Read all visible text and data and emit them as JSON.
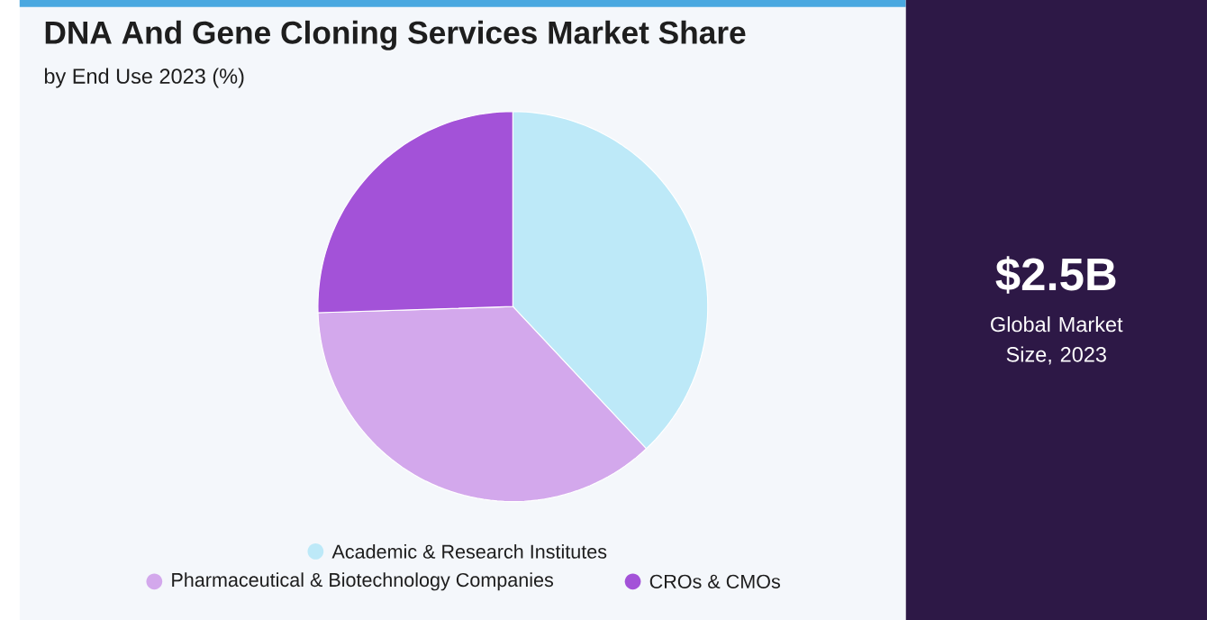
{
  "chart_data": {
    "type": "pie",
    "title": "DNA And Gene Cloning Services Market Share",
    "subtitle": "by End Use 2023 (%)",
    "categories": [
      "Academic & Research Institutes",
      "Pharmaceutical & Biotechnology Companies",
      "CROs & CMOs"
    ],
    "values": [
      38,
      36.5,
      25.5
    ],
    "colors": [
      "#bde9f8",
      "#d3a8ec",
      "#a352d8"
    ],
    "legend": "bottom",
    "annotations": [
      "$2.5B",
      "Global Market Size, 2023"
    ]
  }
}
